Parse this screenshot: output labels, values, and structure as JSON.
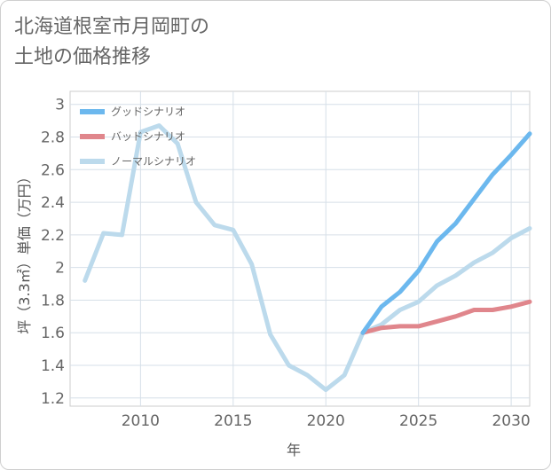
{
  "title": "北海道根室市月岡町の\n土地の価格推移",
  "chart_data": {
    "type": "line",
    "xlabel": "年",
    "ylabel": "坪（3.3㎡）単価（万円）",
    "xlim": [
      2006.2,
      2031
    ],
    "ylim": [
      1.15,
      3.08
    ],
    "xticks": [
      2010,
      2015,
      2020,
      2025,
      2030
    ],
    "yticks": [
      1.2,
      1.4,
      1.6,
      1.8,
      2,
      2.2,
      2.4,
      2.6,
      2.8,
      3
    ],
    "grid": true,
    "legend_position": "top-left",
    "series": [
      {
        "name": "グッドシナリオ",
        "color": "#6cb8ee",
        "x": [
          2022,
          2023,
          2024,
          2025,
          2026,
          2027,
          2028,
          2029,
          2030,
          2031
        ],
        "y": [
          1.6,
          1.76,
          1.85,
          1.98,
          2.16,
          2.27,
          2.42,
          2.57,
          2.69,
          2.82
        ]
      },
      {
        "name": "バッドシナリオ",
        "color": "#e0868c",
        "x": [
          2022,
          2023,
          2024,
          2025,
          2026,
          2027,
          2028,
          2029,
          2030,
          2031
        ],
        "y": [
          1.6,
          1.63,
          1.64,
          1.64,
          1.67,
          1.7,
          1.74,
          1.74,
          1.76,
          1.79
        ]
      },
      {
        "name": "ノーマルシナリオ",
        "color": "#bcdaec",
        "x": [
          2007,
          2008,
          2009,
          2010,
          2011,
          2012,
          2013,
          2014,
          2015,
          2016,
          2017,
          2018,
          2019,
          2020,
          2021,
          2022,
          2023,
          2024,
          2025,
          2026,
          2027,
          2028,
          2029,
          2030,
          2031
        ],
        "y": [
          1.92,
          2.21,
          2.2,
          2.83,
          2.87,
          2.76,
          2.4,
          2.26,
          2.23,
          2.02,
          1.59,
          1.4,
          1.34,
          1.25,
          1.34,
          1.6,
          1.65,
          1.74,
          1.79,
          1.89,
          1.95,
          2.03,
          2.09,
          2.18,
          2.24
        ]
      }
    ]
  }
}
